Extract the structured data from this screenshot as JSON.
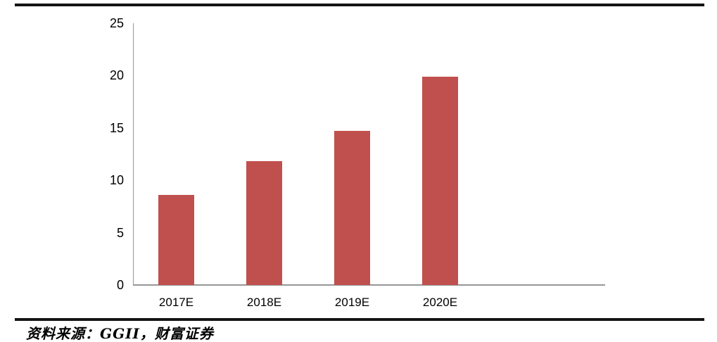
{
  "chart_data": {
    "type": "bar",
    "title": "",
    "xlabel": "",
    "ylabel": "",
    "categories": [
      "2017E",
      "2018E",
      "2019E",
      "2020E"
    ],
    "values": [
      8.6,
      11.8,
      14.7,
      19.9
    ],
    "ylim": [
      0,
      25
    ],
    "yticks": [
      0,
      5,
      10,
      15,
      20,
      25
    ],
    "grid": false,
    "legend_position": "none",
    "bar_color": "#C0504D"
  },
  "source": {
    "text": "资料来源：GGII，财富证券"
  },
  "colors": {
    "bar": "#C0504D",
    "axis": "#969696",
    "rule": "#141414",
    "text": "#000000"
  }
}
